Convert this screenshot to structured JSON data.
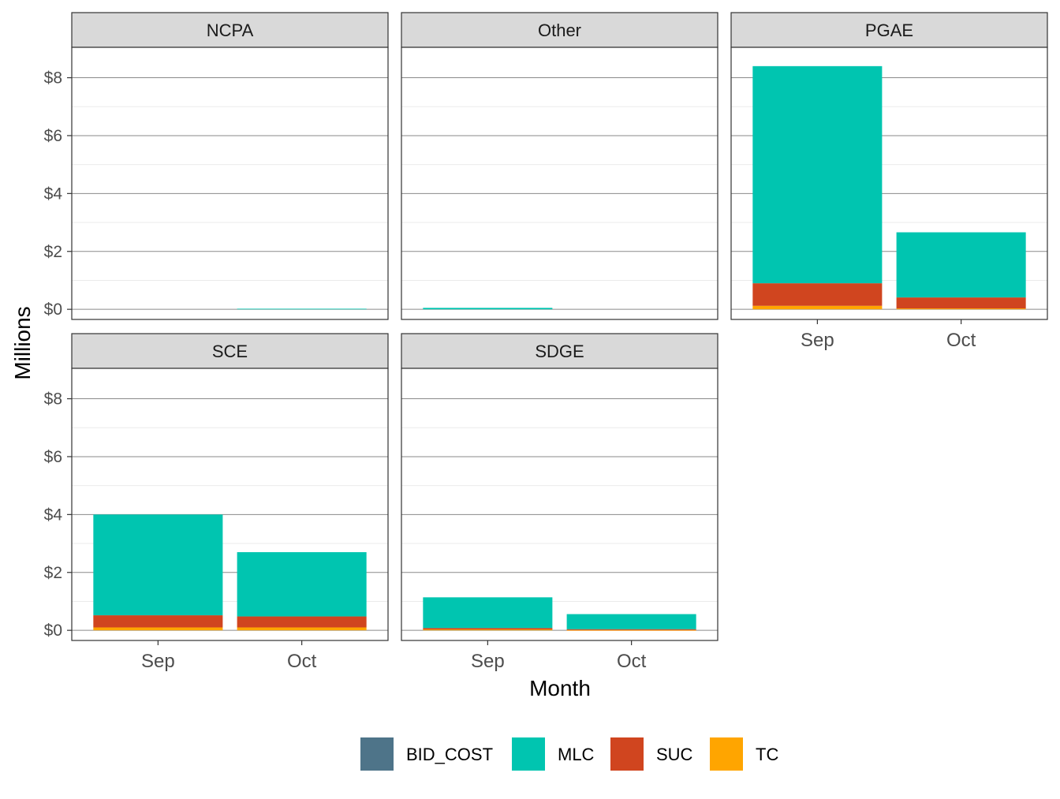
{
  "chart_data": {
    "type": "bar",
    "stacked": true,
    "facets": [
      "NCPA",
      "Other",
      "PGAE",
      "SCE",
      "SDGE"
    ],
    "categories": [
      "Sep",
      "Oct"
    ],
    "xlabel": "Month",
    "ylabel": "Millions",
    "ylim": [
      -0.35,
      9.05
    ],
    "yticks": [
      0,
      2,
      4,
      6,
      8
    ],
    "ytick_labels": [
      "$0",
      "$2",
      "$4",
      "$6",
      "$8"
    ],
    "grid": true,
    "legend_position": "bottom",
    "series": [
      {
        "name": "BID_COST",
        "color": "#4e7489"
      },
      {
        "name": "MLC",
        "color": "#00c5b0"
      },
      {
        "name": "SUC",
        "color": "#d0451f"
      },
      {
        "name": "TC",
        "color": "#ffa500"
      }
    ],
    "stack_order_bottom_to_top": [
      "TC",
      "SUC",
      "MLC",
      "BID_COST"
    ],
    "values": {
      "NCPA": {
        "Sep": {
          "BID_COST": 0,
          "MLC": 0.0,
          "SUC": 0.0,
          "TC": 0.0
        },
        "Oct": {
          "BID_COST": 0,
          "MLC": 0.02,
          "SUC": 0.0,
          "TC": 0.0
        }
      },
      "Other": {
        "Sep": {
          "BID_COST": 0,
          "MLC": 0.05,
          "SUC": 0.0,
          "TC": 0.0
        },
        "Oct": {
          "BID_COST": 0,
          "MLC": 0.0,
          "SUC": 0.0,
          "TC": 0.0
        }
      },
      "PGAE": {
        "Sep": {
          "BID_COST": 0,
          "MLC": 7.5,
          "SUC": 0.78,
          "TC": 0.12
        },
        "Oct": {
          "BID_COST": 0,
          "MLC": 2.25,
          "SUC": 0.38,
          "TC": 0.03
        }
      },
      "SCE": {
        "Sep": {
          "BID_COST": 0,
          "MLC": 3.48,
          "SUC": 0.42,
          "TC": 0.1
        },
        "Oct": {
          "BID_COST": 0,
          "MLC": 2.22,
          "SUC": 0.38,
          "TC": 0.1
        }
      },
      "SDGE": {
        "Sep": {
          "BID_COST": 0,
          "MLC": 1.06,
          "SUC": 0.05,
          "TC": 0.03
        },
        "Oct": {
          "BID_COST": 0,
          "MLC": 0.52,
          "SUC": 0.03,
          "TC": 0.01
        }
      }
    }
  }
}
